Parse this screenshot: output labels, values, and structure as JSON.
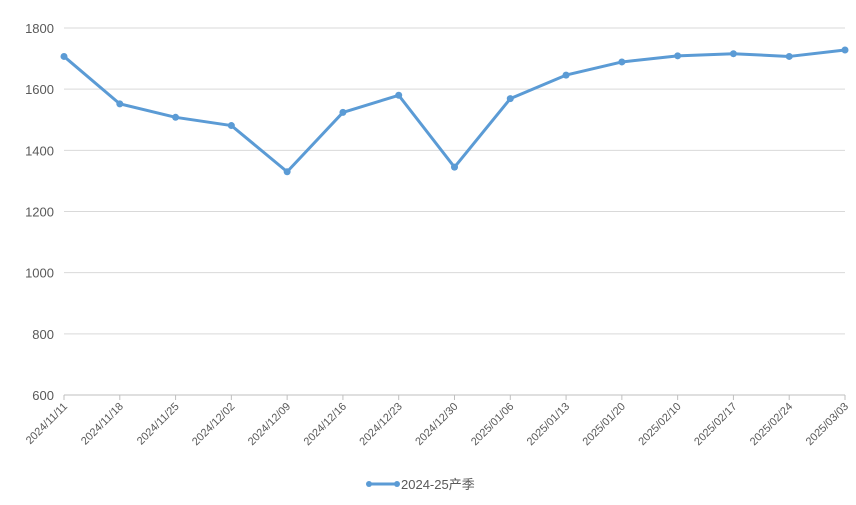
{
  "chart_data": {
    "type": "line",
    "title": "",
    "xlabel": "",
    "ylabel": "",
    "ylim": [
      600,
      1800
    ],
    "yticks": [
      600,
      800,
      1000,
      1200,
      1400,
      1600,
      1800
    ],
    "grid": "horizontal",
    "legend_position": "bottom",
    "categories": [
      "2024/11/11",
      "2024/11/18",
      "2024/11/25",
      "2024/12/02",
      "2024/12/09",
      "2024/12/16",
      "2024/12/23",
      "2024/12/30",
      "2025/01/06",
      "2025/01/13",
      "2025/01/20",
      "2025/02/10",
      "2025/02/17",
      "2025/02/24",
      "2025/03/03"
    ],
    "series": [
      {
        "name": "2024-25产季",
        "color": "#5b9bd5",
        "values": [
          1707,
          1552,
          1508,
          1481,
          1330,
          1524,
          1580,
          1345,
          1569,
          1646,
          1689,
          1709,
          1716,
          1707,
          1728
        ]
      }
    ]
  }
}
